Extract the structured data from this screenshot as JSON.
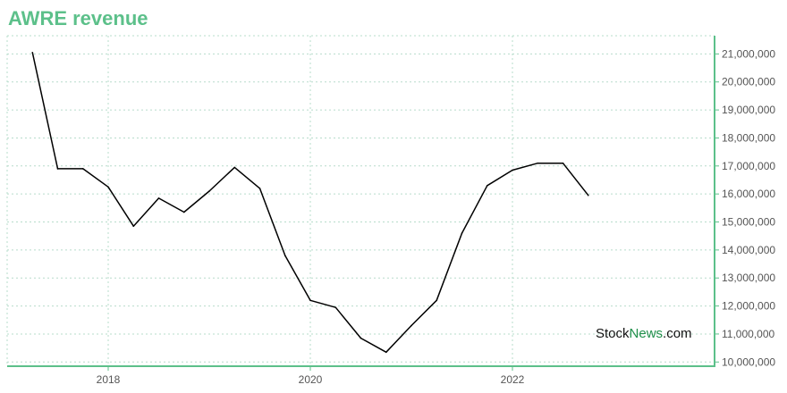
{
  "title": "AWRE revenue",
  "watermark": {
    "part1": "Stock",
    "part2": "News",
    "part3": ".com"
  },
  "colors": {
    "title": "#5cc08a",
    "axis": "#5cc08a",
    "grid": "#b7dccb",
    "line": "#000000"
  },
  "chart_data": {
    "type": "line",
    "title": "AWRE revenue",
    "xlabel": "",
    "ylabel": "",
    "x_ticks": [
      "2018",
      "2020",
      "2022"
    ],
    "x_tick_values": [
      2018.0,
      2020.0,
      2022.0
    ],
    "y_ticks": [
      "10,000,000",
      "11,000,000",
      "12,000,000",
      "13,000,000",
      "14,000,000",
      "15,000,000",
      "16,000,000",
      "17,000,000",
      "18,000,000",
      "19,000,000",
      "20,000,000",
      "21,000,000"
    ],
    "y_tick_values": [
      10000000,
      11000000,
      12000000,
      13000000,
      14000000,
      15000000,
      16000000,
      17000000,
      18000000,
      19000000,
      20000000,
      21000000
    ],
    "xlim": [
      2017.0,
      2024.0
    ],
    "ylim": [
      9850000,
      21650000
    ],
    "grid": true,
    "y_axis_position": "right",
    "series": [
      {
        "x": [
          2017.25,
          2017.5,
          2017.75,
          2018.0,
          2018.25,
          2018.5,
          2018.75,
          2019.0,
          2019.25,
          2019.5,
          2019.75,
          2020.0,
          2020.25,
          2020.5,
          2020.75,
          2021.0,
          2021.25,
          2021.5,
          2021.75,
          2022.0,
          2022.25,
          2022.5,
          2022.75
        ],
        "values": [
          21050000,
          16900000,
          16900000,
          16250000,
          14850000,
          15850000,
          15350000,
          16100000,
          16950000,
          16200000,
          13800000,
          12200000,
          11950000,
          10850000,
          10350000,
          11300000,
          12200000,
          14600000,
          16300000,
          16850000,
          17100000,
          17100000,
          15950000
        ]
      }
    ]
  }
}
